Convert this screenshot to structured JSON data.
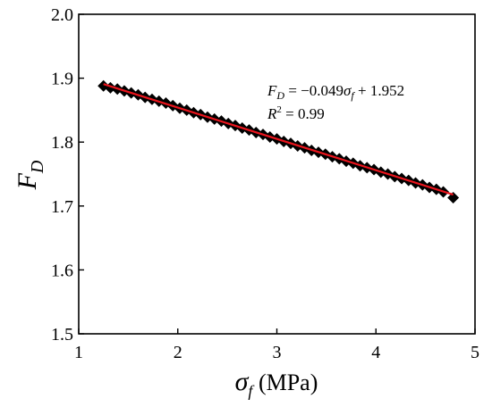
{
  "chart_data": {
    "type": "scatter",
    "x_label": {
      "symbol": "σ",
      "subscript": "f",
      "unit": " (MPa)"
    },
    "y_label": {
      "symbol": "F",
      "subscript": "D"
    },
    "xlim": [
      1,
      5
    ],
    "ylim": [
      1.5,
      2.0
    ],
    "x_ticks": [
      "1",
      "2",
      "3",
      "4",
      "5"
    ],
    "y_ticks": [
      "1.5",
      "1.6",
      "1.7",
      "1.8",
      "1.9",
      "2.0"
    ],
    "grid": false,
    "marker": "diamond",
    "marker_color": "#000000",
    "fit_color": "#e8141c",
    "x": [
      1.25,
      1.32,
      1.39,
      1.46,
      1.53,
      1.6,
      1.67,
      1.74,
      1.81,
      1.88,
      1.95,
      2.02,
      2.09,
      2.16,
      2.23,
      2.3,
      2.37,
      2.44,
      2.51,
      2.58,
      2.65,
      2.72,
      2.79,
      2.86,
      2.93,
      3.0,
      3.07,
      3.14,
      3.21,
      3.28,
      3.35,
      3.42,
      3.49,
      3.56,
      3.63,
      3.7,
      3.77,
      3.84,
      3.91,
      3.98,
      4.05,
      4.12,
      4.19,
      4.26,
      4.33,
      4.4,
      4.47,
      4.54,
      4.61,
      4.68,
      4.78
    ],
    "y": [
      1.888,
      1.885,
      1.883,
      1.88,
      1.877,
      1.874,
      1.87,
      1.867,
      1.864,
      1.861,
      1.857,
      1.853,
      1.85,
      1.846,
      1.843,
      1.839,
      1.836,
      1.833,
      1.829,
      1.826,
      1.822,
      1.819,
      1.815,
      1.812,
      1.808,
      1.805,
      1.801,
      1.798,
      1.794,
      1.791,
      1.787,
      1.784,
      1.781,
      1.777,
      1.774,
      1.77,
      1.767,
      1.763,
      1.76,
      1.757,
      1.753,
      1.75,
      1.746,
      1.743,
      1.74,
      1.736,
      1.733,
      1.729,
      1.726,
      1.722,
      1.713
    ],
    "fit": {
      "slope": -0.049,
      "intercept": 1.952,
      "x_range": [
        1.25,
        4.78
      ]
    },
    "annotation": {
      "eq_lhs_symbol": "F",
      "eq_lhs_sub": "D",
      "eq_middle": " = −0.049",
      "eq_sigma": "σ",
      "eq_sigma_sub": "f",
      "eq_tail": " + 1.952",
      "r2_symbol": "R",
      "r2_sup": "2",
      "r2_value": " = 0.99"
    }
  }
}
